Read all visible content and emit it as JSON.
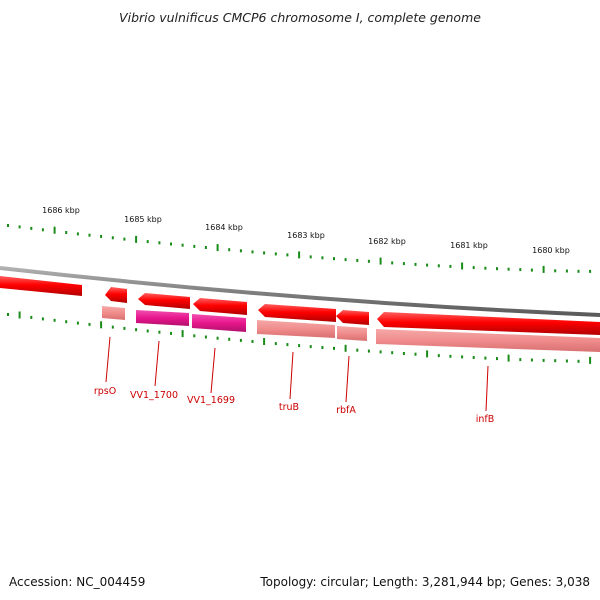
{
  "title": "Vibrio vulnificus CMCP6 chromosome I, complete genome",
  "footer": {
    "accession": "Accession: NC_004459",
    "summary": "Topology: circular; Length: 3,281,944 bp; Genes: 3,038"
  },
  "scale_labels": [
    "1686 kbp",
    "1685 kbp",
    "1684 kbp",
    "1683 kbp",
    "1682 kbp",
    "1681 kbp",
    "1680 kbp"
  ],
  "genes": [
    {
      "label": "rpsO",
      "kind": "gene"
    },
    {
      "label": "VV1_1700",
      "kind": "pseudo"
    },
    {
      "label": "VV1_1699",
      "kind": "pseudo"
    },
    {
      "label": "truB",
      "kind": "gene"
    },
    {
      "label": "rbfA",
      "kind": "gene"
    },
    {
      "label": "infB",
      "kind": "gene"
    }
  ],
  "colors": {
    "cds": "#ff0000",
    "gene": "#f08c8c",
    "pseudo": "#e8158c",
    "backbone": "#808080",
    "ticks": "#1a8c1a",
    "label": "#cc0000"
  }
}
